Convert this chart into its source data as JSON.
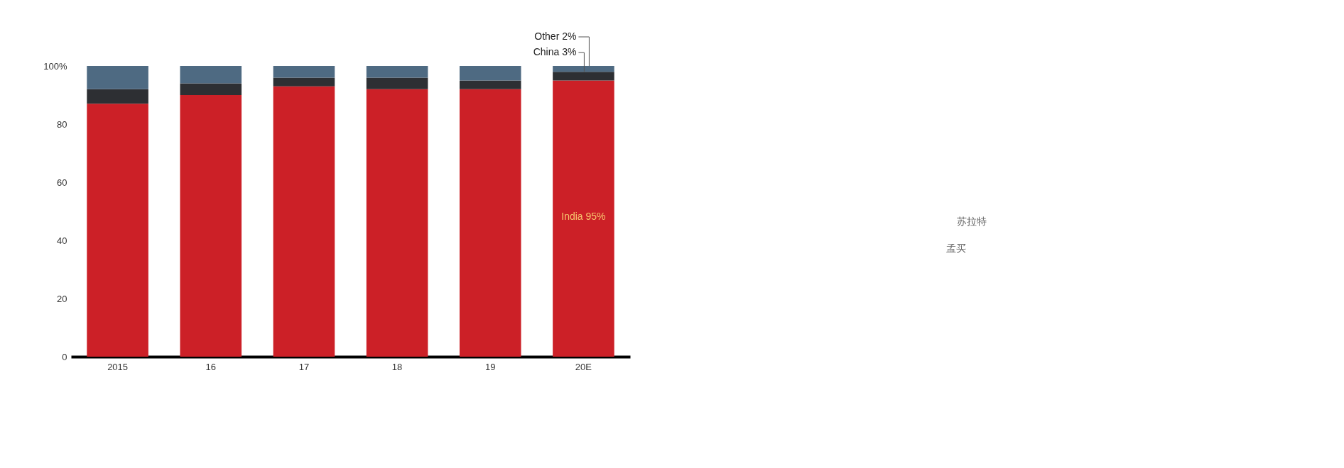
{
  "chart_data": [
    {
      "type": "bar",
      "stacked": true,
      "categories": [
        "2015",
        "16",
        "17",
        "18",
        "19",
        "20E"
      ],
      "series": [
        {
          "color": "#cc2027",
          "values": [
            87,
            90,
            93,
            92,
            92,
            95
          ]
        },
        {
          "color": "#2d2f33",
          "values": [
            5,
            4,
            3,
            4,
            3,
            3
          ]
        },
        {
          "color": "#4e6a82",
          "values": [
            8,
            6,
            4,
            4,
            5,
            2
          ]
        }
      ],
      "ylim": [
        0,
        100
      ],
      "yticks": [
        0,
        20,
        40,
        60,
        80,
        {
          "value": 100,
          "label": "100%"
        }
      ],
      "annotations": [
        "India 95%",
        {
          "text": "China 3%",
          "x": "20E",
          "y": 98
        },
        {
          "text": "Other 2%",
          "x": "20E",
          "y": 100
        }
      ]
    },
    {
      "type": "other",
      "annotations": [
        "苏拉特",
        "孟买"
      ]
    }
  ]
}
